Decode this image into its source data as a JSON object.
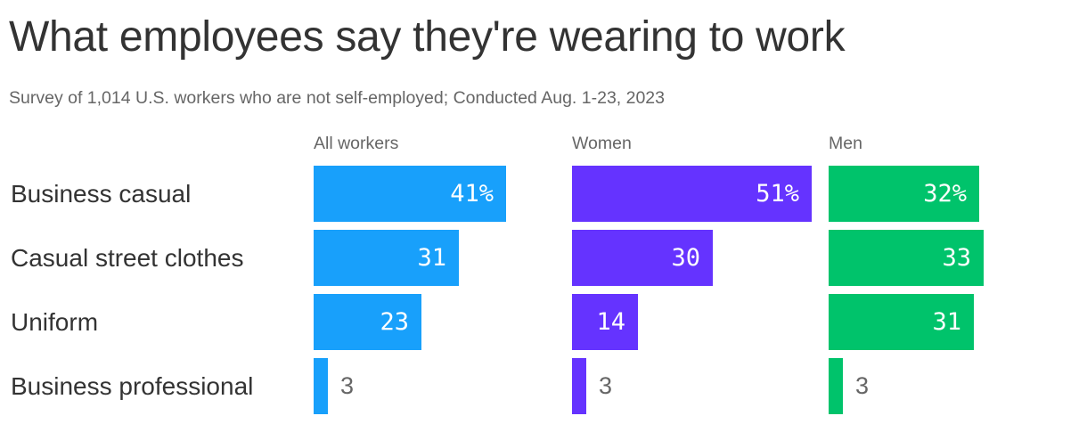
{
  "title": "What employees say they're wearing to work",
  "subtitle": "Survey of 1,014 U.S. workers who are not self-employed; Conducted Aug. 1-23, 2023",
  "colors": {
    "all": "#18a0fb",
    "women": "#6533ff",
    "men": "#00c36b"
  },
  "chart_data": {
    "type": "bar",
    "orientation": "horizontal",
    "title": "What employees say they're wearing to work",
    "subtitle": "Survey of 1,014 U.S. workers who are not self-employed; Conducted Aug. 1-23, 2023",
    "categories": [
      "Business casual",
      "Casual street clothes",
      "Uniform",
      "Business professional"
    ],
    "series": [
      {
        "name": "All workers",
        "values": [
          41,
          31,
          23,
          3
        ],
        "labels": [
          "41%",
          "31",
          "23",
          "3"
        ],
        "color": "#18a0fb"
      },
      {
        "name": "Women",
        "values": [
          51,
          30,
          14,
          3
        ],
        "labels": [
          "51%",
          "30",
          "14",
          "3"
        ],
        "color": "#6533ff"
      },
      {
        "name": "Men",
        "values": [
          32,
          33,
          31,
          3
        ],
        "labels": [
          "32%",
          "33",
          "31",
          "3"
        ],
        "color": "#00c36b"
      }
    ],
    "xlabel": "",
    "ylabel": "",
    "unit": "%",
    "grid": false,
    "legend": "column headers"
  }
}
